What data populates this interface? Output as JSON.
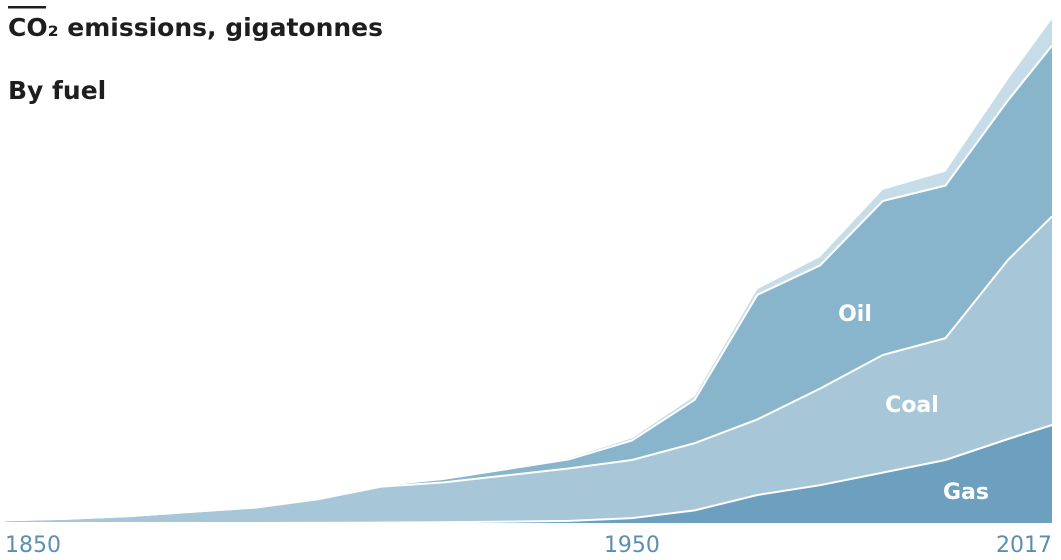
{
  "chart_data": {
    "type": "stacked-area",
    "title": "CO₂ emissions, gigatonnes",
    "subtitle": "By fuel",
    "x": [
      1850,
      1860,
      1870,
      1880,
      1890,
      1900,
      1910,
      1920,
      1930,
      1940,
      1950,
      1960,
      1970,
      1980,
      1990,
      2000,
      2010,
      2017
    ],
    "series": [
      {
        "name": "Gas",
        "color": "#6d9fbf",
        "values": [
          0,
          0,
          0,
          0,
          0,
          0.01,
          0.03,
          0.05,
          0.1,
          0.15,
          0.35,
          0.9,
          2.0,
          2.7,
          3.6,
          4.5,
          6.0,
          7.0
        ]
      },
      {
        "name": "Coal",
        "color": "#a7c6d8",
        "values": [
          0.2,
          0.3,
          0.5,
          0.8,
          1.1,
          1.69,
          2.57,
          2.85,
          3.3,
          3.75,
          4.15,
          4.8,
          5.4,
          6.9,
          8.4,
          8.7,
          12.8,
          14.9
        ]
      },
      {
        "name": "Oil",
        "color": "#88b5cc",
        "values": [
          0,
          0,
          0,
          0.01,
          0.03,
          0.05,
          0.1,
          0.25,
          0.45,
          0.65,
          1.4,
          3.1,
          8.9,
          8.8,
          11,
          10.9,
          11.4,
          12.2
        ]
      },
      {
        "color": "#c6dde9",
        "values": [
          0,
          0,
          0,
          0,
          0,
          0,
          0.01,
          0.02,
          0.04,
          0.08,
          0.15,
          0.25,
          0.4,
          0.6,
          0.8,
          1.0,
          1.5,
          1.9
        ]
      }
    ],
    "xlim": [
      1850,
      2017
    ],
    "xticks": [
      1850,
      1950,
      2017
    ],
    "ylim": [
      0,
      37
    ],
    "grid": false,
    "tick_color": "#5a8fb0"
  }
}
